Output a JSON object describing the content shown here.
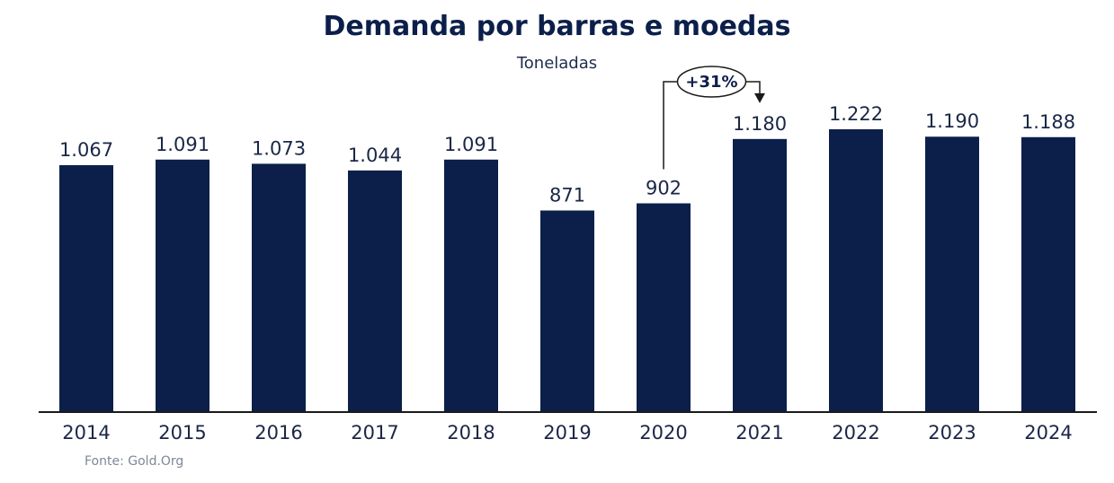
{
  "chart_data": {
    "type": "bar",
    "title": "Demanda por barras e moedas",
    "subtitle": "Toneladas",
    "categories": [
      "2014",
      "2015",
      "2016",
      "2017",
      "2018",
      "2019",
      "2020",
      "2021",
      "2022",
      "2023",
      "2024"
    ],
    "values": [
      1067,
      1091,
      1073,
      1044,
      1091,
      871,
      902,
      1180,
      1222,
      1190,
      1188
    ],
    "value_labels": [
      "1.067",
      "1.091",
      "1.073",
      "1.044",
      "1.091",
      "871",
      "902",
      "1.180",
      "1.222",
      "1.190",
      "1.188"
    ],
    "ylim": [
      0,
      1222
    ],
    "grid": false,
    "bar_color": "#0b1f4a",
    "annotation": {
      "text": "+31%",
      "from": "2020",
      "to": "2021"
    },
    "source": "Fonte: Gold.Org"
  }
}
